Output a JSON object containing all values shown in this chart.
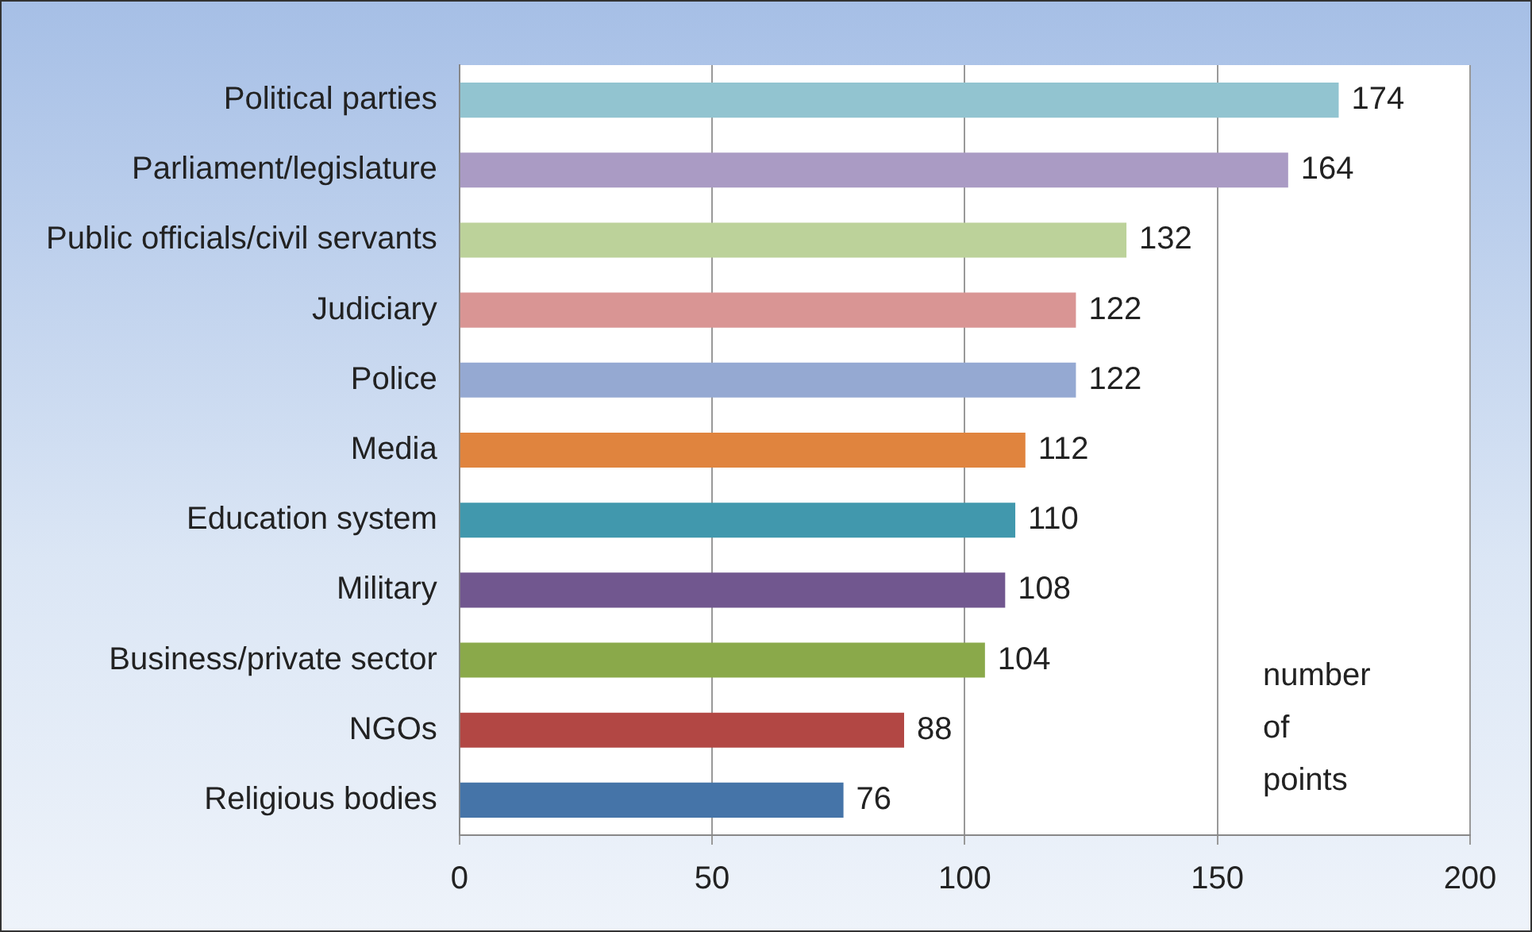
{
  "chart_data": {
    "type": "bar",
    "orientation": "horizontal",
    "categories": [
      "Political parties",
      "Parliament/legislature",
      "Public officials/civil servants",
      "Judiciary",
      "Police",
      "Media",
      "Education system",
      "Military",
      "Business/private sector",
      "NGOs",
      "Religious bodies"
    ],
    "values": [
      174,
      164,
      132,
      122,
      122,
      112,
      110,
      108,
      104,
      88,
      76
    ],
    "colors": [
      "#92c4d0",
      "#aa9bc4",
      "#bcd29a",
      "#d99594",
      "#95a9d2",
      "#e0843e",
      "#4198ad",
      "#71578f",
      "#8aa94a",
      "#b24744",
      "#4574a8"
    ],
    "xlim": [
      0,
      200
    ],
    "xticks": [
      0,
      50,
      100,
      150,
      200
    ],
    "grid": "x",
    "legend": false,
    "data_labels": true,
    "annotations": [
      "number of points"
    ]
  }
}
